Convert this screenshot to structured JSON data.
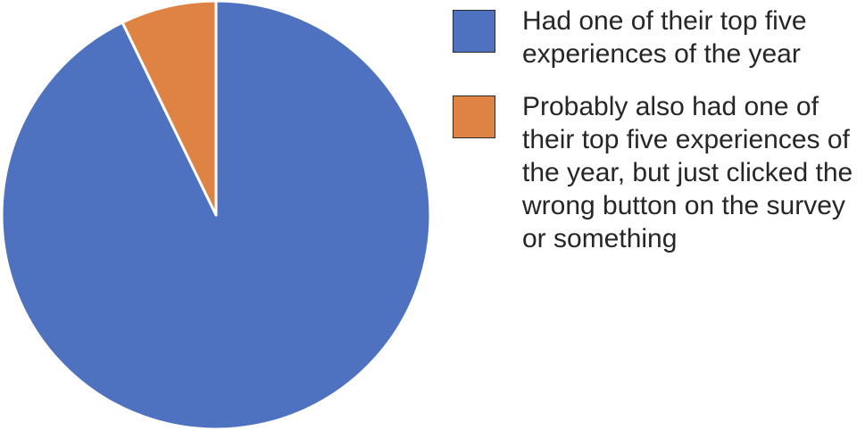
{
  "chart_data": {
    "type": "pie",
    "title": "",
    "start_angle_deg": 0,
    "direction": "clockwise",
    "legend_position": "right",
    "slices": [
      {
        "label": "Had one of their top five experiences of the year",
        "value": 92.8,
        "color": "#4F72C0"
      },
      {
        "label": "Probably also had one of their top five experiences of the year, but just clicked the wrong button on the survey or something",
        "value": 7.2,
        "color": "#DE8344"
      }
    ]
  }
}
